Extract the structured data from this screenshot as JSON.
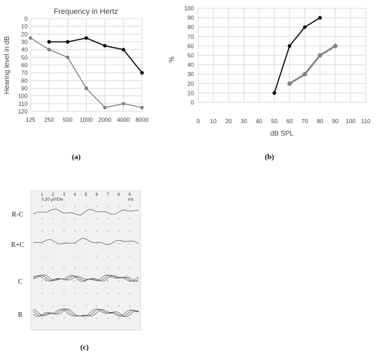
{
  "chart_data": [
    {
      "type": "line",
      "panel": "(a)",
      "title": "Frequency in Hertz",
      "ylabel": "Hearing level in dB",
      "xlabel": "",
      "categories": [
        "125",
        "250",
        "500",
        "1000",
        "2000",
        "4000",
        "8000"
      ],
      "y_ticks": [
        "0",
        "10",
        "20",
        "30",
        "40",
        "50",
        "60",
        "70",
        "80",
        "90",
        "100",
        "110",
        "120"
      ],
      "ylim": [
        0,
        120
      ],
      "y_inverted": true,
      "grid": true,
      "series": [
        {
          "color": "#000000",
          "values": [
            null,
            30,
            30,
            25,
            35,
            40,
            70
          ]
        },
        {
          "color": "#808080",
          "values": [
            25,
            40,
            50,
            90,
            115,
            110,
            115
          ]
        }
      ]
    },
    {
      "type": "line",
      "panel": "(b)",
      "title": "",
      "ylabel": "%",
      "xlabel": "dB SPL",
      "x_ticks": [
        "0",
        "10",
        "20",
        "30",
        "40",
        "50",
        "60",
        "70",
        "80",
        "90",
        "100",
        "110"
      ],
      "y_ticks": [
        "0",
        "10",
        "20",
        "30",
        "40",
        "50",
        "60",
        "70",
        "80",
        "90",
        "100"
      ],
      "xlim": [
        0,
        110
      ],
      "ylim": [
        0,
        100
      ],
      "grid": true,
      "series": [
        {
          "color": "#000000",
          "points": [
            [
              50,
              10
            ],
            [
              60,
              60
            ],
            [
              70,
              80
            ],
            [
              80,
              90
            ]
          ]
        },
        {
          "color": "#808080",
          "points": [
            [
              60,
              20
            ],
            [
              70,
              30
            ],
            [
              80,
              50
            ],
            [
              90,
              60
            ]
          ]
        }
      ]
    }
  ],
  "abr_panel": {
    "panel": "(c)",
    "scale_label": "0.20 µV/Div",
    "unit_label": "ms",
    "x_ticks": [
      "1",
      "2",
      "3",
      "4",
      "5",
      "6",
      "7",
      "8",
      "9"
    ],
    "traces": [
      "R-C",
      "R+C",
      "C",
      "R"
    ]
  }
}
